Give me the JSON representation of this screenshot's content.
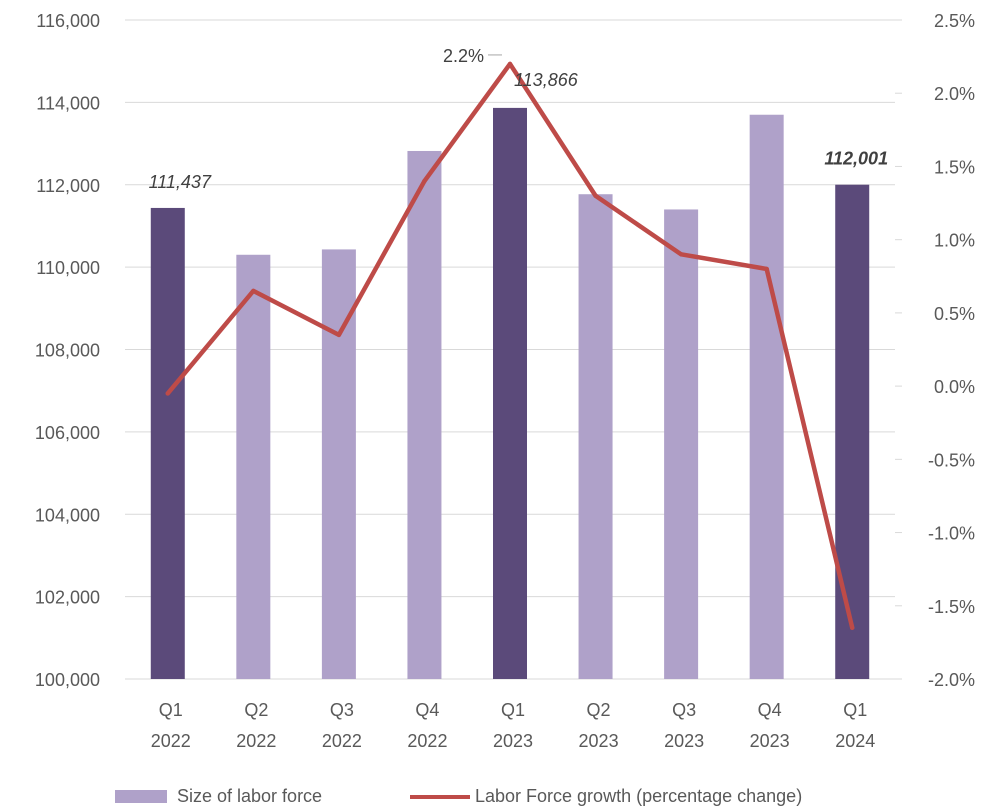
{
  "chart_data": {
    "type": "bar",
    "categories": [
      [
        "Q1",
        "2022"
      ],
      [
        "Q2",
        "2022"
      ],
      [
        "Q3",
        "2022"
      ],
      [
        "Q4",
        "2022"
      ],
      [
        "Q1",
        "2023"
      ],
      [
        "Q2",
        "2023"
      ],
      [
        "Q3",
        "2023"
      ],
      [
        "Q4",
        "2023"
      ],
      [
        "Q1",
        "2024"
      ]
    ],
    "series": [
      {
        "name": "Size of labor force",
        "type": "bar",
        "axis": "left",
        "values": [
          111437,
          110300,
          110430,
          112820,
          113866,
          111770,
          111400,
          113700,
          112001
        ],
        "highlight": [
          true,
          false,
          false,
          false,
          true,
          false,
          false,
          false,
          true
        ],
        "data_labels": [
          "111,437",
          "",
          "",
          "",
          "113,866",
          "",
          "",
          "",
          "112,001"
        ]
      },
      {
        "name": "Labor Force growth (percentage change)",
        "type": "line",
        "axis": "right",
        "values": [
          -0.05,
          0.65,
          0.35,
          1.4,
          2.2,
          1.3,
          0.9,
          0.8,
          -1.65
        ],
        "data_labels": [
          "",
          "",
          "",
          "",
          "2.2%",
          "",
          "",
          "",
          ""
        ]
      }
    ],
    "ylim_left": [
      100000,
      116000
    ],
    "yticks_left": [
      "100,000",
      "102,000",
      "104,000",
      "106,000",
      "108,000",
      "110,000",
      "112,000",
      "114,000",
      "116,000"
    ],
    "ylim_right": [
      -2.0,
      2.5
    ],
    "yticks_right": [
      "-2.0%",
      "-1.5%",
      "-1.0%",
      "-0.5%",
      "0.0%",
      "0.5%",
      "1.0%",
      "1.5%",
      "2.0%",
      "2.5%"
    ],
    "grid": true,
    "legend_position": "bottom",
    "colors": {
      "bar_highlight": "#5B4A7A",
      "bar_normal": "#AFA1C9",
      "line": "#BE4B48",
      "grid": "#D9D9D9",
      "text": "#595959"
    }
  }
}
